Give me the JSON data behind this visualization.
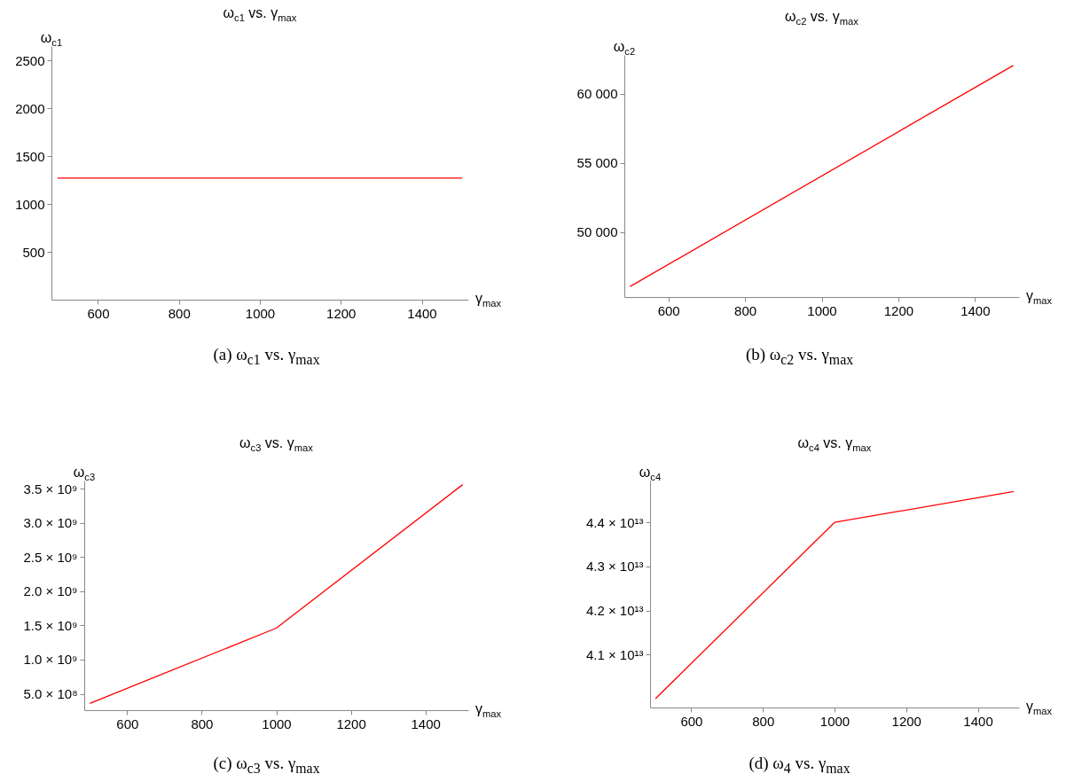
{
  "chart_data": [
    {
      "type": "line",
      "title": "ω$_{c1}$ vs. γ$_{max}$",
      "xlabel": "γ$_{max}$",
      "ylabel": "ω$_{c1}$",
      "annotations": [
        "(a) ω$_{c1}$ vs. γ$_{max}$"
      ],
      "x": [
        500,
        1500
      ],
      "series": [
        {
          "color": "#ff0000",
          "values": [
            1270,
            1270
          ]
        }
      ],
      "xlim": [
        485,
        1515
      ],
      "xticks": [
        600,
        800,
        1000,
        1200,
        1400
      ],
      "ylim": [
        0,
        2650
      ],
      "yticks": [
        500,
        1000,
        1500,
        2000,
        2500
      ]
    },
    {
      "type": "line",
      "title": "ω$_{c2}$ vs. γ$_{max}$",
      "xlabel": "γ$_{max}$",
      "ylabel": "ω$_{c2}$",
      "annotations": [
        "(b) ω$_{c2}$ vs. γ$_{max}$"
      ],
      "x": [
        500,
        1500
      ],
      "series": [
        {
          "color": "#ff0000",
          "values": [
            46060,
            62040
          ]
        }
      ],
      "xlim": [
        485,
        1515
      ],
      "xticks": [
        600,
        800,
        1000,
        1200,
        1400
      ],
      "ylim": [
        45300,
        62800
      ],
      "yticks": [
        {
          "value": 50000,
          "label": "50 000"
        },
        {
          "value": 55000,
          "label": "55 000"
        },
        {
          "value": 60000,
          "label": "60 000"
        }
      ]
    },
    {
      "type": "line",
      "title": "ω$_{c3}$ vs. γ$_{max}$",
      "xlabel": "γ$_{max}$",
      "ylabel": "ω$_{c3}$",
      "annotations": [
        "(c) ω$_{c3}$ vs. γ$_{max}$"
      ],
      "x": [
        500,
        1000,
        1500
      ],
      "series": [
        {
          "color": "#ff0000",
          "values": [
            360000000,
            1460000000,
            3560000000
          ]
        }
      ],
      "xlim": [
        485,
        1515
      ],
      "xticks": [
        600,
        800,
        1000,
        1200,
        1400
      ],
      "ylim": [
        260000000,
        3620000000
      ],
      "yticks": [
        {
          "value": 500000000,
          "label": "5.0 × 10⁸"
        },
        {
          "value": 1000000000,
          "label": "1.0 × 10⁹"
        },
        {
          "value": 1500000000,
          "label": "1.5 × 10⁹"
        },
        {
          "value": 2000000000,
          "label": "2.0 × 10⁹"
        },
        {
          "value": 2500000000,
          "label": "2.5 × 10⁹"
        },
        {
          "value": 3000000000,
          "label": "3.0 × 10⁹"
        },
        {
          "value": 3500000000,
          "label": "3.5 × 10⁹"
        }
      ]
    },
    {
      "type": "line",
      "title": "ω$_{c4}$ vs. γ$_{max}$",
      "xlabel": "γ$_{max}$",
      "ylabel": "ω$_{c4}$",
      "annotations": [
        "(d) ω$_{4}$ vs. γ$_{max}$"
      ],
      "x": [
        500,
        1000,
        1500
      ],
      "series": [
        {
          "color": "#ff0000",
          "values": [
            40000000000000,
            44000000000000,
            44700000000000
          ]
        }
      ],
      "xlim": [
        485,
        1515
      ],
      "xticks": [
        600,
        800,
        1000,
        1200,
        1400
      ],
      "ylim": [
        39800000000000,
        44950000000000
      ],
      "yticks": [
        {
          "value": 41000000000000,
          "label": "4.1 × 10¹³"
        },
        {
          "value": 42000000000000,
          "label": "4.2 × 10¹³"
        },
        {
          "value": 43000000000000,
          "label": "4.3 × 10¹³"
        },
        {
          "value": 44000000000000,
          "label": "4.4 × 10¹³"
        }
      ]
    }
  ]
}
